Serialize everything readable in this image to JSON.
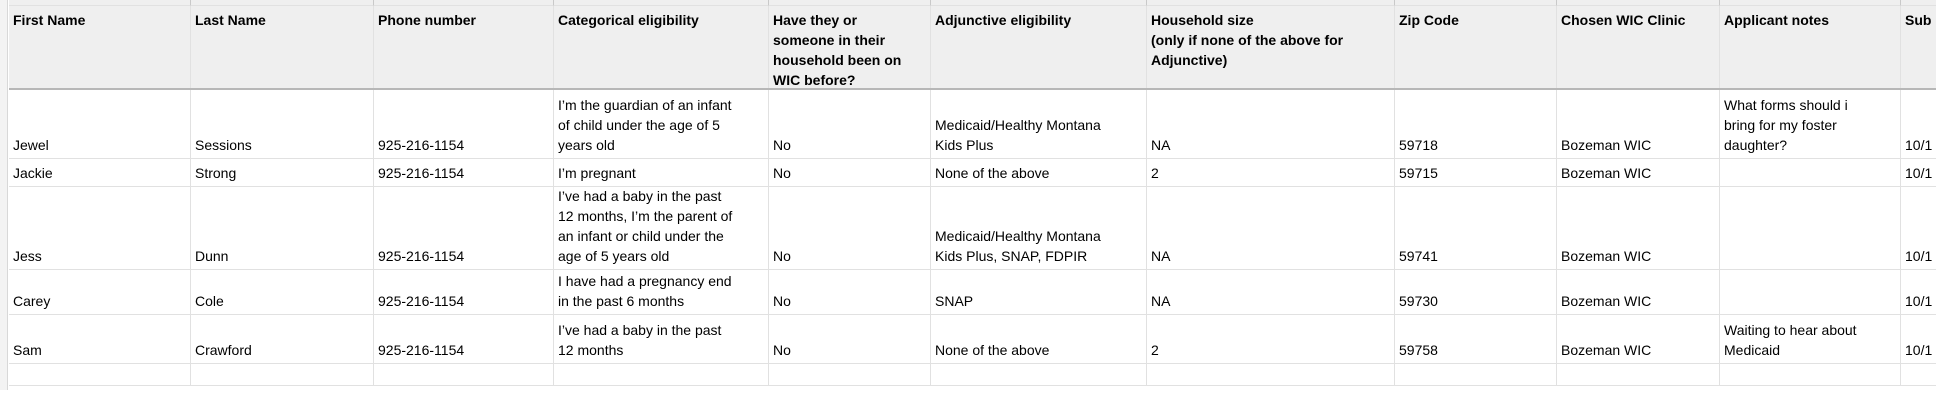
{
  "sheet": {
    "colors": {
      "header_bg": "#efefef",
      "gridline": "#e1e1e1",
      "frozen_divider": "#b7b7b7",
      "cell_bg": "#ffffff"
    },
    "columns": [
      {
        "key": "first_name",
        "label": "First Name"
      },
      {
        "key": "last_name",
        "label": "Last Name"
      },
      {
        "key": "phone",
        "label": "Phone number"
      },
      {
        "key": "categorical",
        "label": "Categorical eligibility"
      },
      {
        "key": "wic_before",
        "label": "Have they or\nsomeone in their\nhousehold been on\nWIC before?"
      },
      {
        "key": "adjunctive",
        "label": "Adjunctive eligibility"
      },
      {
        "key": "household_size",
        "label": "Household size\n(only if none of the above for\nAdjunctive)"
      },
      {
        "key": "zip",
        "label": "Zip Code"
      },
      {
        "key": "clinic",
        "label": "Chosen WIC Clinic"
      },
      {
        "key": "notes",
        "label": "Applicant notes"
      },
      {
        "key": "submitted",
        "label": "Sub"
      }
    ],
    "rows": [
      {
        "first_name": "Jewel",
        "last_name": "Sessions",
        "phone": "925-216-1154",
        "categorical": "I’m the guardian of an infant\nof child under the age of 5\nyears old",
        "wic_before": "No",
        "adjunctive": "Medicaid/Healthy Montana\nKids Plus",
        "household_size": "NA",
        "zip": "59718",
        "clinic": "Bozeman WIC",
        "notes": "What forms should i\nbring for my foster\ndaughter?",
        "submitted": "10/1"
      },
      {
        "first_name": "Jackie",
        "last_name": "Strong",
        "phone": "925-216-1154",
        "categorical": "I’m pregnant",
        "wic_before": "No",
        "adjunctive": "None of the above",
        "household_size": "2",
        "zip": "59715",
        "clinic": "Bozeman WIC",
        "notes": "",
        "submitted": "10/1"
      },
      {
        "first_name": "Jess",
        "last_name": "Dunn",
        "phone": "925-216-1154",
        "categorical": "I’ve had a baby in the past\n12 months, I’m the parent of\nan infant or child under the\nage of 5 years old",
        "wic_before": "No",
        "adjunctive": "Medicaid/Healthy Montana\nKids Plus, SNAP, FDPIR",
        "household_size": "NA",
        "zip": "59741",
        "clinic": "Bozeman WIC",
        "notes": "",
        "submitted": "10/1"
      },
      {
        "first_name": "Carey",
        "last_name": "Cole",
        "phone": "925-216-1154",
        "categorical": "I have had a pregnancy end\nin the past 6 months",
        "wic_before": "No",
        "adjunctive": "SNAP",
        "household_size": "NA",
        "zip": "59730",
        "clinic": "Bozeman WIC",
        "notes": "",
        "submitted": "10/1"
      },
      {
        "first_name": "Sam",
        "last_name": "Crawford",
        "phone": "925-216-1154",
        "categorical": "I’ve had a baby in the past\n12 months",
        "wic_before": "No",
        "adjunctive": "None of the above",
        "household_size": "2",
        "zip": "59758",
        "clinic": "Bozeman WIC",
        "notes": "Waiting to hear about\nMedicaid",
        "submitted": "10/1"
      },
      {
        "first_name": "",
        "last_name": "",
        "phone": "",
        "categorical": "",
        "wic_before": "",
        "adjunctive": "",
        "household_size": "",
        "zip": "",
        "clinic": "",
        "notes": "",
        "submitted": ""
      }
    ]
  }
}
